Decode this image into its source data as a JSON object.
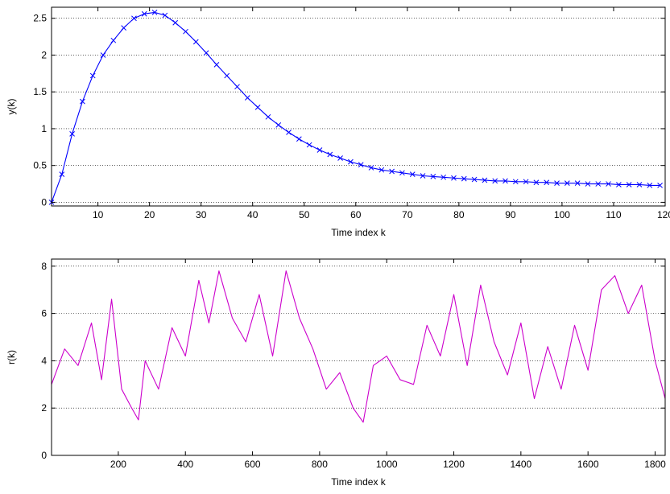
{
  "colors": {
    "series_top": "#0000ff",
    "series_bottom": "#cc00cc",
    "grid": "#000000",
    "axes": "#000000",
    "background": "#ffffff"
  },
  "chart_data": [
    {
      "type": "line",
      "markers": "x",
      "xlabel": "Time index k",
      "ylabel": "y(k)",
      "xlim": [
        1,
        120
      ],
      "ylim": [
        -0.05,
        2.65
      ],
      "xticks": [
        10,
        20,
        30,
        40,
        50,
        60,
        70,
        80,
        90,
        100,
        110,
        120
      ],
      "xtick_labels": [
        "10",
        "20",
        "30",
        "40",
        "50",
        "60",
        "70",
        "80",
        "90",
        "100",
        "110",
        "120"
      ],
      "yticks": [
        0,
        0.5,
        1,
        1.5,
        2,
        2.5
      ],
      "ytick_labels": [
        "0",
        "0.5",
        "1",
        "1.5",
        "2",
        "2.5"
      ],
      "grid": "horizontal",
      "series": [
        {
          "x": [
            1,
            3,
            5,
            7,
            9,
            11,
            13,
            15,
            17,
            19,
            21,
            23,
            25,
            27,
            29,
            31,
            33,
            35,
            37,
            39,
            41,
            43,
            45,
            47,
            49,
            51,
            53,
            55,
            57,
            59,
            61,
            63,
            65,
            67,
            69,
            71,
            73,
            75,
            77,
            79,
            81,
            83,
            85,
            87,
            89,
            91,
            93,
            95,
            97,
            99,
            101,
            103,
            105,
            107,
            109,
            111,
            113,
            115,
            117,
            119
          ],
          "values": [
            0.0,
            0.38,
            0.93,
            1.37,
            1.72,
            2.0,
            2.2,
            2.37,
            2.5,
            2.56,
            2.58,
            2.54,
            2.44,
            2.32,
            2.18,
            2.03,
            1.87,
            1.72,
            1.57,
            1.42,
            1.29,
            1.16,
            1.05,
            0.95,
            0.86,
            0.78,
            0.71,
            0.65,
            0.6,
            0.55,
            0.51,
            0.47,
            0.44,
            0.42,
            0.4,
            0.38,
            0.36,
            0.35,
            0.34,
            0.33,
            0.32,
            0.31,
            0.3,
            0.29,
            0.29,
            0.28,
            0.28,
            0.27,
            0.27,
            0.26,
            0.26,
            0.26,
            0.25,
            0.25,
            0.25,
            0.24,
            0.24,
            0.24,
            0.23,
            0.23
          ]
        }
      ]
    },
    {
      "type": "line",
      "xlabel": "Time index k",
      "ylabel": "r(k)",
      "xlim": [
        1,
        1830
      ],
      "ylim": [
        0,
        8.3
      ],
      "xticks": [
        200,
        400,
        600,
        800,
        1000,
        1200,
        1400,
        1600,
        1800
      ],
      "xtick_labels": [
        "200",
        "400",
        "600",
        "800",
        "1000",
        "1200",
        "1400",
        "1600",
        "1800"
      ],
      "yticks": [
        0,
        2,
        4,
        6,
        8
      ],
      "ytick_labels": [
        "0",
        "2",
        "4",
        "6",
        "8"
      ],
      "grid": "horizontal",
      "series": [
        {
          "x": [
            1,
            40,
            80,
            120,
            150,
            180,
            210,
            240,
            260,
            280,
            320,
            360,
            400,
            440,
            470,
            500,
            540,
            580,
            620,
            660,
            700,
            740,
            780,
            820,
            860,
            900,
            930,
            960,
            1000,
            1040,
            1080,
            1120,
            1160,
            1200,
            1240,
            1280,
            1320,
            1360,
            1400,
            1440,
            1480,
            1520,
            1560,
            1600,
            1640,
            1680,
            1720,
            1760,
            1800,
            1830
          ],
          "values": [
            3.0,
            4.5,
            3.8,
            5.6,
            3.2,
            6.6,
            2.8,
            2.0,
            1.5,
            4.0,
            2.8,
            5.4,
            4.2,
            7.4,
            5.6,
            7.8,
            5.8,
            4.8,
            6.8,
            4.2,
            7.8,
            5.8,
            4.5,
            2.8,
            3.5,
            2.0,
            1.4,
            3.8,
            4.2,
            3.2,
            3.0,
            5.5,
            4.2,
            6.8,
            3.8,
            7.2,
            4.8,
            3.4,
            5.6,
            2.4,
            4.6,
            2.8,
            5.5,
            3.6,
            7.0,
            7.6,
            6.0,
            7.2,
            4.0,
            2.4
          ]
        }
      ]
    }
  ]
}
